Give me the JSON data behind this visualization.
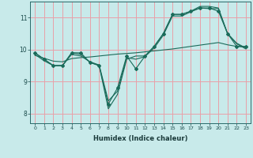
{
  "xlabel": "Humidex (Indice chaleur)",
  "ylabel": "",
  "background_color": "#c8eaea",
  "grid_color": "#e8a0a8",
  "line_color": "#1a6b5a",
  "xlim": [
    -0.5,
    23.5
  ],
  "ylim": [
    7.7,
    11.5
  ],
  "yticks": [
    8,
    9,
    10,
    11
  ],
  "xticks": [
    0,
    1,
    2,
    3,
    4,
    5,
    6,
    7,
    8,
    9,
    10,
    11,
    12,
    13,
    14,
    15,
    16,
    17,
    18,
    19,
    20,
    21,
    22,
    23
  ],
  "series": [
    {
      "x": [
        0,
        1,
        2,
        3,
        4,
        5,
        6,
        7,
        8,
        9,
        10,
        11,
        12,
        13,
        14,
        15,
        16,
        17,
        18,
        19,
        20,
        21,
        22,
        23
      ],
      "y": [
        9.9,
        9.7,
        9.5,
        9.5,
        9.9,
        9.9,
        9.6,
        9.5,
        8.3,
        8.8,
        9.8,
        9.4,
        9.8,
        10.1,
        10.5,
        11.1,
        11.1,
        11.2,
        11.3,
        11.3,
        11.2,
        10.5,
        10.1,
        10.1
      ],
      "marker": true
    },
    {
      "x": [
        0,
        1,
        2,
        3,
        4,
        5,
        6,
        7,
        8,
        9,
        10,
        11,
        12,
        13,
        14,
        15,
        16,
        17,
        18,
        19,
        20,
        21,
        22,
        23
      ],
      "y": [
        9.9,
        9.7,
        9.5,
        9.5,
        9.9,
        9.85,
        9.6,
        9.5,
        8.15,
        8.6,
        9.7,
        9.8,
        9.8,
        10.1,
        10.5,
        11.1,
        11.1,
        11.2,
        11.35,
        11.35,
        11.3,
        10.5,
        10.2,
        10.05
      ],
      "marker": false
    },
    {
      "x": [
        0,
        1,
        2,
        3,
        4,
        5,
        6,
        7,
        8,
        9,
        10,
        11,
        12,
        13,
        14,
        15,
        16,
        17,
        18,
        19,
        20,
        21,
        22,
        23
      ],
      "y": [
        9.85,
        9.65,
        9.5,
        9.5,
        9.85,
        9.8,
        9.62,
        9.52,
        8.4,
        8.7,
        9.75,
        9.7,
        9.78,
        10.05,
        10.45,
        11.05,
        11.05,
        11.18,
        11.3,
        11.28,
        11.28,
        10.5,
        10.18,
        10.02
      ],
      "marker": false
    },
    {
      "x": [
        0,
        1,
        2,
        3,
        4,
        5,
        6,
        7,
        8,
        9,
        10,
        11,
        12,
        13,
        14,
        15,
        16,
        17,
        18,
        19,
        20,
        21,
        22,
        23
      ],
      "y": [
        9.82,
        9.73,
        9.64,
        9.62,
        9.72,
        9.75,
        9.77,
        9.8,
        9.83,
        9.86,
        9.88,
        9.9,
        9.93,
        9.96,
        9.99,
        10.02,
        10.06,
        10.1,
        10.14,
        10.18,
        10.22,
        10.15,
        10.1,
        10.08
      ],
      "marker": false
    }
  ]
}
